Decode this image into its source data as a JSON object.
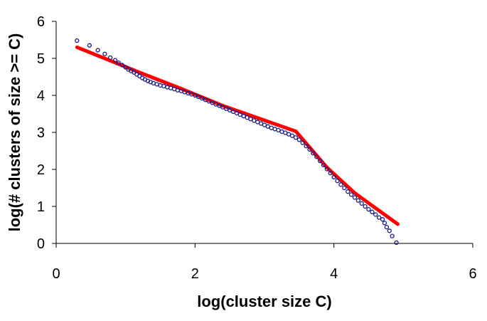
{
  "chart_data": {
    "type": "scatter",
    "xlabel": "log(cluster size C)",
    "ylabel": "log(# clusters of size >= C)",
    "xlim": [
      0,
      6
    ],
    "ylim": [
      0,
      6
    ],
    "xticks": [
      "0",
      "2",
      "4",
      "6"
    ],
    "yticks": [
      "0",
      "1",
      "2",
      "3",
      "4",
      "5",
      "6"
    ],
    "grid": false,
    "legend": "none",
    "colors": {
      "points": "#1a1a8c",
      "fit": "#ff0000"
    },
    "series": [
      {
        "kind": "points",
        "x": [
          0.3,
          0.48,
          0.6,
          0.7,
          0.78,
          0.85,
          0.9,
          0.95,
          1.0,
          1.04,
          1.08,
          1.12,
          1.16,
          1.2,
          1.24,
          1.28,
          1.32,
          1.36,
          1.4,
          1.45,
          1.5,
          1.55,
          1.6,
          1.65,
          1.7,
          1.75,
          1.8,
          1.85,
          1.9,
          1.95,
          2.0,
          2.05,
          2.1,
          2.15,
          2.2,
          2.25,
          2.3,
          2.35,
          2.4,
          2.45,
          2.5,
          2.55,
          2.6,
          2.65,
          2.7,
          2.75,
          2.8,
          2.85,
          2.9,
          2.95,
          3.0,
          3.05,
          3.1,
          3.15,
          3.2,
          3.25,
          3.3,
          3.35,
          3.4,
          3.45,
          3.5,
          3.55,
          3.6,
          3.65,
          3.7,
          3.75,
          3.8,
          3.85,
          3.9,
          3.95,
          4.0,
          4.05,
          4.1,
          4.15,
          4.2,
          4.25,
          4.3,
          4.35,
          4.4,
          4.45,
          4.5,
          4.55,
          4.6,
          4.65,
          4.7,
          4.73,
          4.76,
          4.8,
          4.84,
          4.9
        ],
        "y": [
          5.48,
          5.35,
          5.22,
          5.12,
          5.02,
          4.95,
          4.88,
          4.82,
          4.76,
          4.7,
          4.66,
          4.62,
          4.57,
          4.52,
          4.47,
          4.43,
          4.39,
          4.36,
          4.33,
          4.3,
          4.27,
          4.25,
          4.22,
          4.2,
          4.17,
          4.14,
          4.12,
          4.09,
          4.06,
          4.03,
          4.0,
          3.96,
          3.92,
          3.88,
          3.84,
          3.8,
          3.76,
          3.72,
          3.68,
          3.64,
          3.6,
          3.56,
          3.52,
          3.48,
          3.44,
          3.4,
          3.36,
          3.32,
          3.28,
          3.24,
          3.2,
          3.16,
          3.12,
          3.09,
          3.06,
          3.02,
          2.99,
          2.95,
          2.91,
          2.86,
          2.8,
          2.72,
          2.63,
          2.54,
          2.44,
          2.34,
          2.23,
          2.12,
          2.01,
          1.9,
          1.79,
          1.69,
          1.59,
          1.5,
          1.4,
          1.32,
          1.24,
          1.16,
          1.08,
          1.0,
          0.92,
          0.85,
          0.78,
          0.7,
          0.65,
          0.55,
          0.44,
          0.34,
          0.2,
          0.02
        ]
      },
      {
        "kind": "fit",
        "x": [
          0.3,
          1.2,
          1.8,
          2.4,
          3.45,
          3.9,
          4.3,
          4.92
        ],
        "y": [
          5.3,
          4.62,
          4.18,
          3.72,
          3.03,
          2.05,
          1.36,
          0.52
        ]
      }
    ]
  }
}
